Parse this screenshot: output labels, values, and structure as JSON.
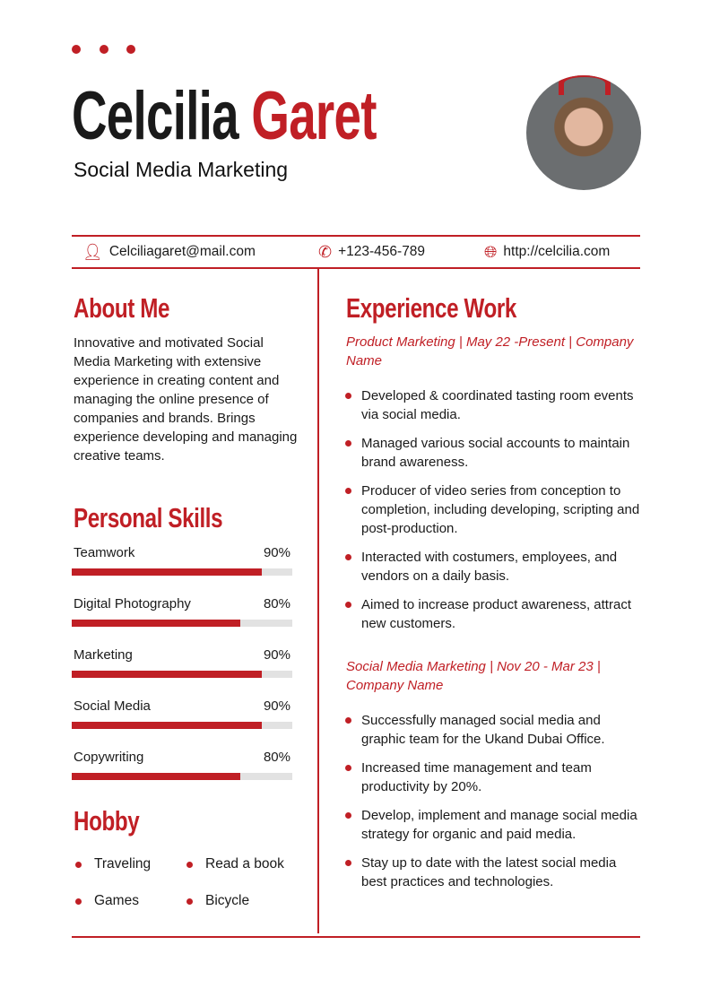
{
  "header": {
    "first_name": "Celcilia",
    "last_name": "Garet",
    "role": "Social Media Marketing",
    "accent": "#c01f25"
  },
  "contact": {
    "email": "Celciliagaret@mail.com",
    "phone": "+123-456-789",
    "website": "http://celcilia.com"
  },
  "about": {
    "title": "About Me",
    "text": "Innovative and motivated Social Media Marketing with extensive experience in creating content and managing the online presence of companies and brands. Brings experience developing and managing creative teams."
  },
  "skills": {
    "title": "Personal Skills",
    "items": [
      {
        "label": "Teamwork",
        "value": "90%",
        "level": 90
      },
      {
        "label": "Digital Photography",
        "value": "80%",
        "level": 80
      },
      {
        "label": "Marketing",
        "value": "90%",
        "level": 90
      },
      {
        "label": "Social Media",
        "value": "90%",
        "level": 90
      },
      {
        "label": "Copywriting",
        "value": "80%",
        "level": 80
      }
    ]
  },
  "hobby": {
    "title": "Hobby",
    "items": [
      "Traveling",
      "Read a book",
      "Games",
      "Bicycle"
    ]
  },
  "experience": {
    "title": "Experience Work",
    "jobs": [
      {
        "heading": "Product Marketing | May 22 -Present | Company Name",
        "bullets": [
          "Developed & coordinated tasting room events via social media.",
          "Managed various social accounts to maintain brand awareness.",
          "Producer of video series from conception to completion, including developing, scripting and post-production.",
          "Interacted with costumers, employees, and vendors on a daily basis.",
          "Aimed to increase product awareness, attract new customers."
        ]
      },
      {
        "heading": "Social Media Marketing | Nov 20 - Mar 23 | Company Name",
        "bullets": [
          "Successfully managed social media and graphic team for the Ukand Dubai Office.",
          "Increased time management and team productivity by 20%.",
          "Develop, implement and manage social media strategy for organic and paid media.",
          "Stay up to date with the latest social media best practices and technologies."
        ]
      }
    ]
  }
}
